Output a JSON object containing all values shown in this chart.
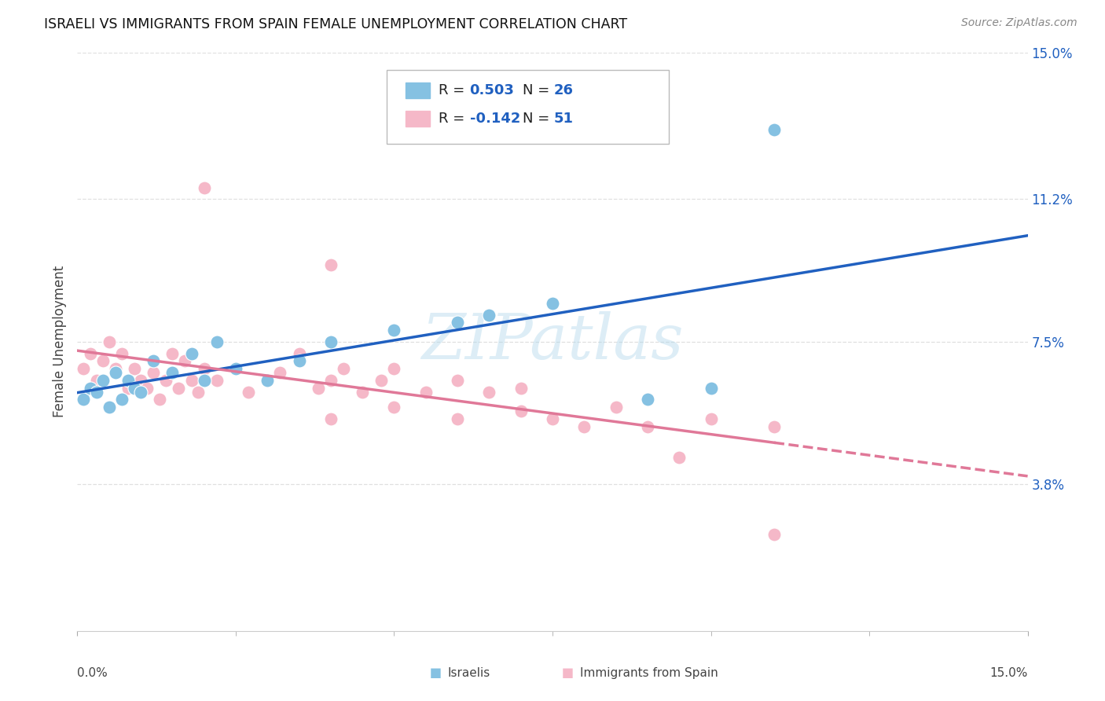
{
  "title": "ISRAELI VS IMMIGRANTS FROM SPAIN FEMALE UNEMPLOYMENT CORRELATION CHART",
  "source_text": "Source: ZipAtlas.com",
  "ylabel": "Female Unemployment",
  "x_min": 0.0,
  "x_max": 0.15,
  "y_min": 0.0,
  "y_max": 0.15,
  "y_tick_labels_right": [
    "3.8%",
    "7.5%",
    "11.2%",
    "15.0%"
  ],
  "y_tick_vals_right": [
    0.038,
    0.075,
    0.112,
    0.15
  ],
  "watermark": "ZIPatlas",
  "israelis_color": "#85c1e2",
  "spain_color": "#f5b8c8",
  "regression_israelis_color": "#2060c0",
  "regression_spain_color": "#e07898",
  "text_value_color": "#2060c0",
  "background_color": "#ffffff",
  "grid_color": "#e0e0e0",
  "israelis_x": [
    0.001,
    0.002,
    0.003,
    0.004,
    0.005,
    0.006,
    0.007,
    0.008,
    0.009,
    0.01,
    0.012,
    0.015,
    0.018,
    0.02,
    0.022,
    0.025,
    0.03,
    0.035,
    0.04,
    0.05,
    0.06,
    0.065,
    0.075,
    0.09,
    0.1,
    0.11
  ],
  "israelis_y": [
    0.06,
    0.063,
    0.062,
    0.065,
    0.058,
    0.067,
    0.06,
    0.065,
    0.063,
    0.062,
    0.07,
    0.067,
    0.072,
    0.065,
    0.075,
    0.068,
    0.065,
    0.07,
    0.075,
    0.078,
    0.08,
    0.082,
    0.085,
    0.06,
    0.063,
    0.13
  ],
  "spain_x": [
    0.001,
    0.002,
    0.003,
    0.004,
    0.005,
    0.006,
    0.007,
    0.008,
    0.009,
    0.01,
    0.011,
    0.012,
    0.013,
    0.014,
    0.015,
    0.016,
    0.017,
    0.018,
    0.019,
    0.02,
    0.022,
    0.025,
    0.027,
    0.03,
    0.032,
    0.035,
    0.038,
    0.04,
    0.042,
    0.045,
    0.048,
    0.05,
    0.055,
    0.06,
    0.065,
    0.07,
    0.04,
    0.05,
    0.06,
    0.065,
    0.07,
    0.075,
    0.08,
    0.085,
    0.09,
    0.1,
    0.11,
    0.02,
    0.04,
    0.095,
    0.11
  ],
  "spain_y": [
    0.068,
    0.072,
    0.065,
    0.07,
    0.075,
    0.068,
    0.072,
    0.063,
    0.068,
    0.065,
    0.063,
    0.067,
    0.06,
    0.065,
    0.072,
    0.063,
    0.07,
    0.065,
    0.062,
    0.068,
    0.065,
    0.068,
    0.062,
    0.065,
    0.067,
    0.072,
    0.063,
    0.065,
    0.068,
    0.062,
    0.065,
    0.068,
    0.062,
    0.065,
    0.062,
    0.063,
    0.055,
    0.058,
    0.055,
    0.062,
    0.057,
    0.055,
    0.053,
    0.058,
    0.053,
    0.055,
    0.053,
    0.115,
    0.095,
    0.045,
    0.025
  ]
}
